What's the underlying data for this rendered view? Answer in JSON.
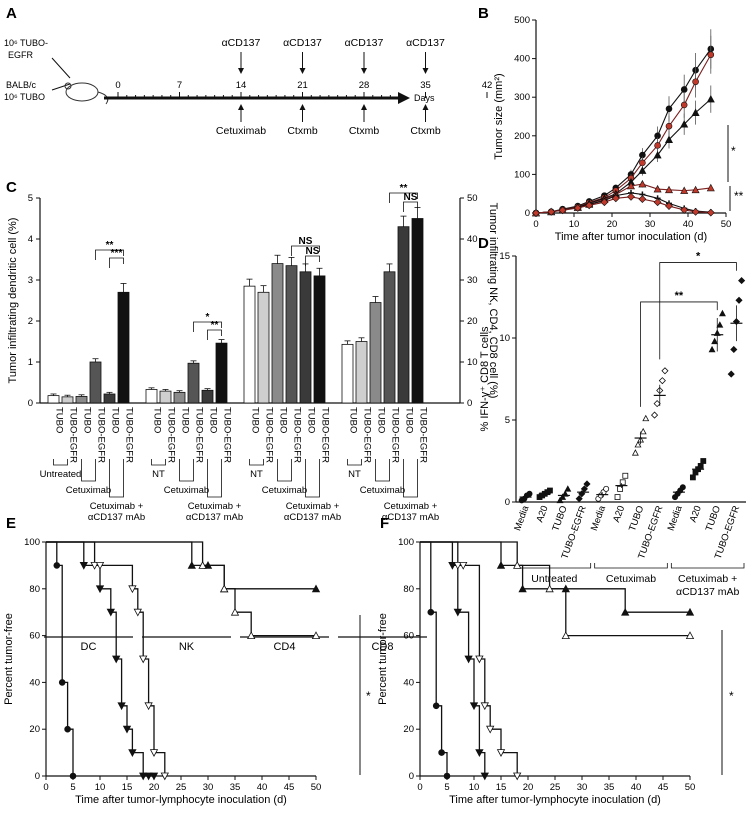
{
  "figure": {
    "panels": {
      "A": {
        "letter": "A",
        "mouse_labels": [
          "10⁶ TUBO-",
          "EGFR",
          "BALB/c",
          "10⁶ TUBO"
        ],
        "timeline_ticks": [
          "0",
          "7",
          "14",
          "21",
          "28",
          "35",
          "42"
        ],
        "timeline_unit": "Days",
        "top_treatments": [
          "αCD137",
          "αCD137",
          "αCD137",
          "αCD137"
        ],
        "bottom_treatments": [
          "Cetuximab",
          "Ctxmb",
          "Ctxmb",
          "Ctxmb"
        ]
      },
      "B": {
        "letter": "B",
        "sig1": "*",
        "sig2": "**"
      },
      "C": {
        "letter": "C",
        "group_labels": [
          "DC",
          "NK",
          "CD4",
          "CD8"
        ],
        "sig": [
          "**",
          "***",
          "*",
          "**",
          "NS",
          "NS",
          "**",
          "NS"
        ],
        "treat_labels": {
          "untreated": "Untreated",
          "nt": "NT",
          "cetuximab": "Cetuximab",
          "combo1": "Cetuximab +",
          "combo2": "αCD137 mAb"
        }
      },
      "D": {
        "letter": "D",
        "groups": [
          "Untreated",
          "Cetuximab",
          "Cetuximab +",
          "αCD137 mAb"
        ],
        "sig": [
          "**",
          "*"
        ]
      },
      "E": {
        "letter": "E",
        "sig": "*"
      },
      "F": {
        "letter": "F",
        "sig": "*"
      }
    }
  },
  "chart_data": [
    {
      "panel": "B",
      "type": "line",
      "title": "",
      "xlabel": "Time after tumor inoculation (d)",
      "ylabel": "Tumor size (mm²)",
      "xlim": [
        0,
        50
      ],
      "ylim": [
        0,
        500
      ],
      "xticks": [
        0,
        10,
        20,
        30,
        40,
        50
      ],
      "yticks": [
        0,
        100,
        200,
        300,
        400,
        500
      ],
      "series": [
        {
          "marker": "circle-black",
          "x": [
            0,
            4,
            7,
            11,
            14,
            18,
            21,
            25,
            28,
            32,
            35,
            39,
            42,
            46
          ],
          "y": [
            0,
            3,
            10,
            18,
            30,
            45,
            65,
            100,
            150,
            200,
            270,
            320,
            370,
            425
          ]
        },
        {
          "marker": "circle-red",
          "x": [
            0,
            4,
            7,
            11,
            14,
            18,
            21,
            25,
            28,
            32,
            35,
            39,
            42,
            46
          ],
          "y": [
            0,
            3,
            9,
            16,
            27,
            40,
            58,
            90,
            130,
            175,
            225,
            280,
            340,
            410
          ]
        },
        {
          "marker": "triangle-black",
          "x": [
            0,
            4,
            7,
            11,
            14,
            18,
            21,
            25,
            28,
            32,
            35,
            39,
            42,
            46
          ],
          "y": [
            0,
            3,
            8,
            15,
            25,
            38,
            50,
            80,
            110,
            150,
            190,
            230,
            260,
            295
          ]
        },
        {
          "marker": "triangle-red",
          "x": [
            0,
            4,
            7,
            11,
            14,
            18,
            21,
            25,
            28,
            32,
            35,
            39,
            42,
            46
          ],
          "y": [
            0,
            3,
            8,
            14,
            22,
            35,
            48,
            70,
            75,
            62,
            60,
            58,
            60,
            65
          ]
        },
        {
          "marker": "cross-black",
          "x": [
            0,
            4,
            7,
            11,
            14,
            18,
            21,
            25,
            28,
            32,
            35,
            39,
            42,
            46
          ],
          "y": [
            0,
            3,
            8,
            14,
            22,
            32,
            45,
            52,
            48,
            38,
            25,
            12,
            5,
            2
          ]
        },
        {
          "marker": "diamond-red",
          "x": [
            0,
            4,
            7,
            11,
            14,
            18,
            21,
            25,
            28,
            32,
            35,
            39,
            42,
            46
          ],
          "y": [
            0,
            3,
            7,
            13,
            20,
            28,
            38,
            42,
            36,
            28,
            18,
            8,
            3,
            1
          ]
        }
      ]
    },
    {
      "panel": "C",
      "type": "bar",
      "ylabel": "Tumor infiltrating dendritic cell (%)",
      "y2label": "Tumor infiltrating NK, CD4, CD8 cell (%)",
      "ylim": [
        0,
        5
      ],
      "y2lim": [
        0,
        50
      ],
      "yticks": [
        0,
        1,
        2,
        3,
        4,
        5
      ],
      "y2ticks": [
        0,
        10,
        20,
        30,
        40,
        50
      ],
      "categories": [
        "TUBO",
        "TUBO-EGFR",
        "TUBO",
        "TUBO-EGFR",
        "TUBO",
        "TUBO-EGFR"
      ],
      "groups": [
        {
          "name": "DC",
          "axis": "left",
          "values": [
            0.18,
            0.15,
            0.16,
            1.0,
            0.22,
            2.7
          ]
        },
        {
          "name": "NK",
          "axis": "right",
          "values": [
            3.3,
            2.9,
            2.6,
            9.7,
            3.1,
            14.6
          ]
        },
        {
          "name": "CD4",
          "axis": "right",
          "values": [
            28.5,
            27,
            34,
            33.5,
            32,
            31
          ]
        },
        {
          "name": "CD8",
          "axis": "right",
          "values": [
            14.3,
            15,
            24.5,
            32,
            43,
            45
          ]
        }
      ]
    },
    {
      "panel": "D",
      "type": "scatter",
      "ylabel": "% IFN-γ⁺ CD8 T cells",
      "ylim": [
        0,
        15
      ],
      "yticks": [
        0,
        5,
        10,
        15
      ],
      "categories": [
        "Media",
        "A20",
        "TUBO",
        "TUBO-EGFR",
        "Media",
        "A20",
        "TUBO",
        "TUBO-EGFR",
        "Media",
        "A20",
        "TUBO",
        "TUBO-EGFR"
      ],
      "means": [
        0.3,
        0.5,
        0.4,
        0.6,
        0.45,
        1.0,
        3.9,
        6.5,
        0.6,
        2.0,
        10.2,
        10.9
      ],
      "points": [
        [
          0.1,
          0.2,
          0.4,
          0.5
        ],
        [
          0.3,
          0.4,
          0.5,
          0.6,
          0.7
        ],
        [
          0.1,
          0.3,
          0.5,
          0.8
        ],
        [
          0.2,
          0.5,
          0.8,
          1.1
        ],
        [
          0.2,
          0.4,
          0.6,
          0.8
        ],
        [
          0.3,
          0.8,
          1.2,
          1.6
        ],
        [
          3.0,
          3.5,
          3.8,
          4.3,
          5.1
        ],
        [
          5.3,
          6.0,
          6.8,
          7.4,
          8.0
        ],
        [
          0.3,
          0.5,
          0.7,
          0.9
        ],
        [
          1.5,
          1.8,
          2.0,
          2.2,
          2.5
        ],
        [
          9.3,
          9.8,
          10.3,
          10.8,
          11.5
        ],
        [
          7.8,
          9.3,
          11.0,
          12.3,
          13.5
        ]
      ]
    },
    {
      "panel": "E",
      "type": "line",
      "xlabel": "Time after tumor-lymphocyte inoculation (d)",
      "ylabel": "Percent tumor-free",
      "xlim": [
        0,
        50
      ],
      "ylim": [
        0,
        100
      ],
      "xticks": [
        0,
        5,
        10,
        15,
        20,
        25,
        30,
        35,
        40,
        45,
        50
      ],
      "yticks": [
        0,
        20,
        40,
        60,
        80,
        100
      ],
      "series": [
        {
          "marker": "circle",
          "x": [
            0,
            2,
            3,
            4,
            5
          ],
          "y": [
            100,
            90,
            40,
            20,
            0
          ]
        },
        {
          "marker": "triangle-down",
          "x": [
            0,
            7,
            10,
            12,
            13,
            14,
            15,
            16,
            18,
            19,
            20
          ],
          "y": [
            100,
            90,
            80,
            70,
            50,
            30,
            20,
            10,
            0,
            0,
            0
          ]
        },
        {
          "marker": "triangle-down-open",
          "x": [
            0,
            9,
            10,
            16,
            17,
            18,
            19,
            20,
            22
          ],
          "y": [
            100,
            90,
            90,
            80,
            70,
            50,
            30,
            10,
            0
          ]
        },
        {
          "marker": "triangle-up",
          "x": [
            0,
            27,
            30,
            33,
            50
          ],
          "y": [
            100,
            90,
            90,
            80,
            80
          ]
        },
        {
          "marker": "triangle-up-open",
          "x": [
            0,
            29,
            33,
            35,
            38,
            50
          ],
          "y": [
            100,
            90,
            80,
            70,
            60,
            60
          ]
        }
      ]
    },
    {
      "panel": "F",
      "type": "line",
      "xlabel": "Time after tumor-lymphocyte inoculation (d)",
      "ylabel": "Percent tumor-free",
      "xlim": [
        0,
        50
      ],
      "ylim": [
        0,
        100
      ],
      "xticks": [
        0,
        5,
        10,
        15,
        20,
        25,
        30,
        35,
        40,
        45,
        50
      ],
      "yticks": [
        0,
        20,
        40,
        60,
        80,
        100
      ],
      "series": [
        {
          "marker": "circle",
          "x": [
            0,
            2,
            3,
            4,
            5
          ],
          "y": [
            100,
            70,
            30,
            10,
            0
          ]
        },
        {
          "marker": "triangle-down",
          "x": [
            0,
            6,
            7,
            9,
            10,
            11,
            12
          ],
          "y": [
            100,
            90,
            70,
            50,
            30,
            10,
            0
          ]
        },
        {
          "marker": "triangle-down-open",
          "x": [
            0,
            7,
            8,
            11,
            12,
            13,
            15,
            18
          ],
          "y": [
            100,
            90,
            90,
            50,
            30,
            20,
            10,
            0
          ]
        },
        {
          "marker": "triangle-up",
          "x": [
            0,
            15,
            19,
            27,
            38,
            50
          ],
          "y": [
            100,
            90,
            80,
            80,
            70,
            70
          ]
        },
        {
          "marker": "triangle-up-open",
          "x": [
            0,
            18,
            24,
            27,
            50
          ],
          "y": [
            100,
            90,
            80,
            60,
            60
          ]
        }
      ]
    }
  ]
}
